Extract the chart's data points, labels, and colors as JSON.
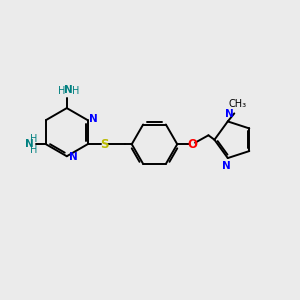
{
  "bg_color": "#ebebeb",
  "bond_color": "#000000",
  "N_color": "#0000ff",
  "S_color": "#bbbb00",
  "O_color": "#ff0000",
  "NH2_color": "#008080",
  "lw": 1.4,
  "figsize": [
    3.0,
    3.0
  ],
  "dpi": 100,
  "xlim": [
    0,
    10
  ],
  "ylim": [
    0,
    10
  ]
}
